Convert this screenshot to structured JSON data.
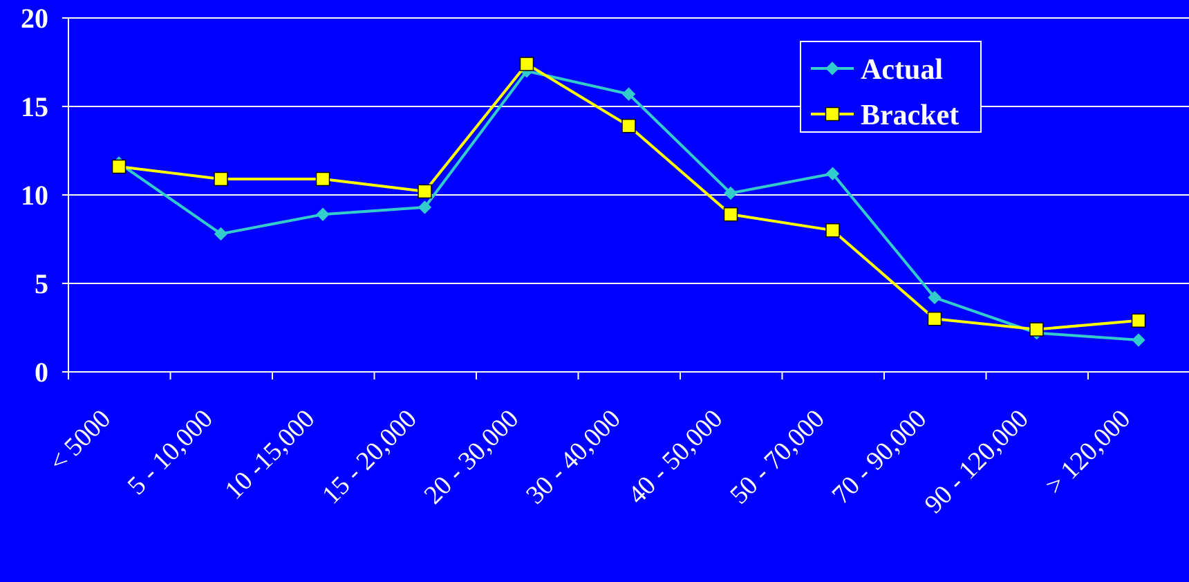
{
  "colors": {
    "background": "#0000FF",
    "grid": "#FFFFFF",
    "axis": "#FFFFFF",
    "text": "#FFFFFF"
  },
  "chart_data": {
    "type": "line",
    "categories": [
      "< 5000",
      "5 - 10,000",
      "10 -15,000",
      "15 - 20,000",
      "20 - 30,000",
      "30 - 40,000",
      "40 - 50,000",
      "50 - 70,000",
      "70 - 90,000",
      "90 - 120,000",
      "> 120,000"
    ],
    "series": [
      {
        "name": "Actual",
        "color": "#33CCCC",
        "marker": "diamond",
        "values": [
          11.8,
          7.8,
          8.9,
          9.3,
          17.0,
          15.7,
          10.1,
          11.2,
          4.2,
          2.2,
          1.8
        ]
      },
      {
        "name": "Bracket",
        "color": "#FFFF00",
        "marker": "square",
        "values": [
          11.6,
          10.9,
          10.9,
          10.2,
          17.4,
          13.9,
          8.9,
          8.0,
          3.0,
          2.4,
          2.9
        ]
      }
    ],
    "ylim": [
      0,
      20
    ],
    "yticks": [
      0,
      5,
      10,
      15,
      20
    ],
    "grid": true,
    "legend": "top-right",
    "title": "",
    "xlabel": "",
    "ylabel": ""
  }
}
